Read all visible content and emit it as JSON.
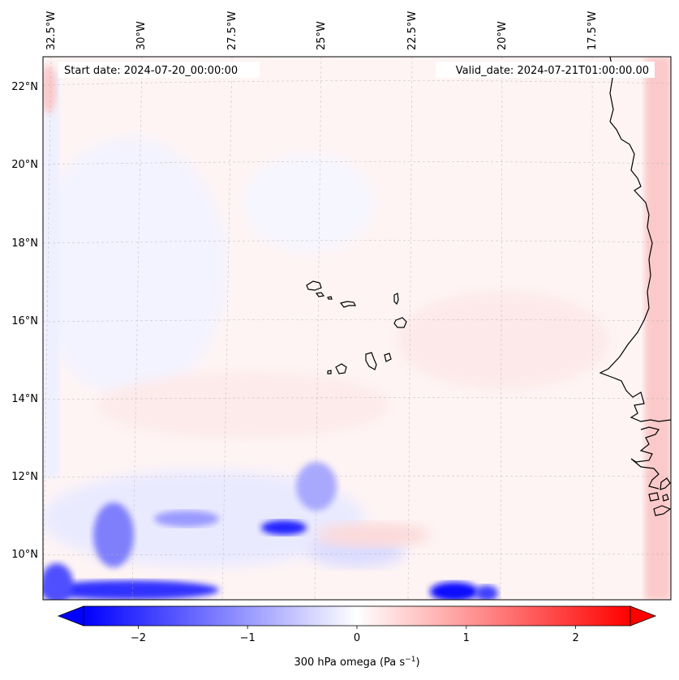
{
  "map": {
    "start_label": "Start date: 2024-07-20_00:00:00",
    "valid_label": "Valid_date: 2024-07-21T01:00:00.00",
    "lon_labels": [
      "32.5°W",
      "30°W",
      "27.5°W",
      "25°W",
      "22.5°W",
      "20°W",
      "17.5°W"
    ],
    "lat_labels": [
      "22°N",
      "20°N",
      "18°N",
      "16°N",
      "14°N",
      "12°N",
      "10°N"
    ],
    "colorbar": {
      "label": "300 hPa omega (Pa s",
      "label_sup": "−1",
      "label_end": ")",
      "tick_labels": [
        "−2",
        "−1",
        "0",
        "1",
        "2"
      ],
      "tick_values": [
        -2,
        -1,
        0,
        1,
        2
      ],
      "range": [
        -2.5,
        2.5
      ],
      "colormap": "bwr",
      "extend": "both"
    },
    "colors": {
      "coast": "#000000",
      "grid": "#b0b0b0",
      "negative": "#0000ff",
      "positive": "#ff0000"
    }
  }
}
